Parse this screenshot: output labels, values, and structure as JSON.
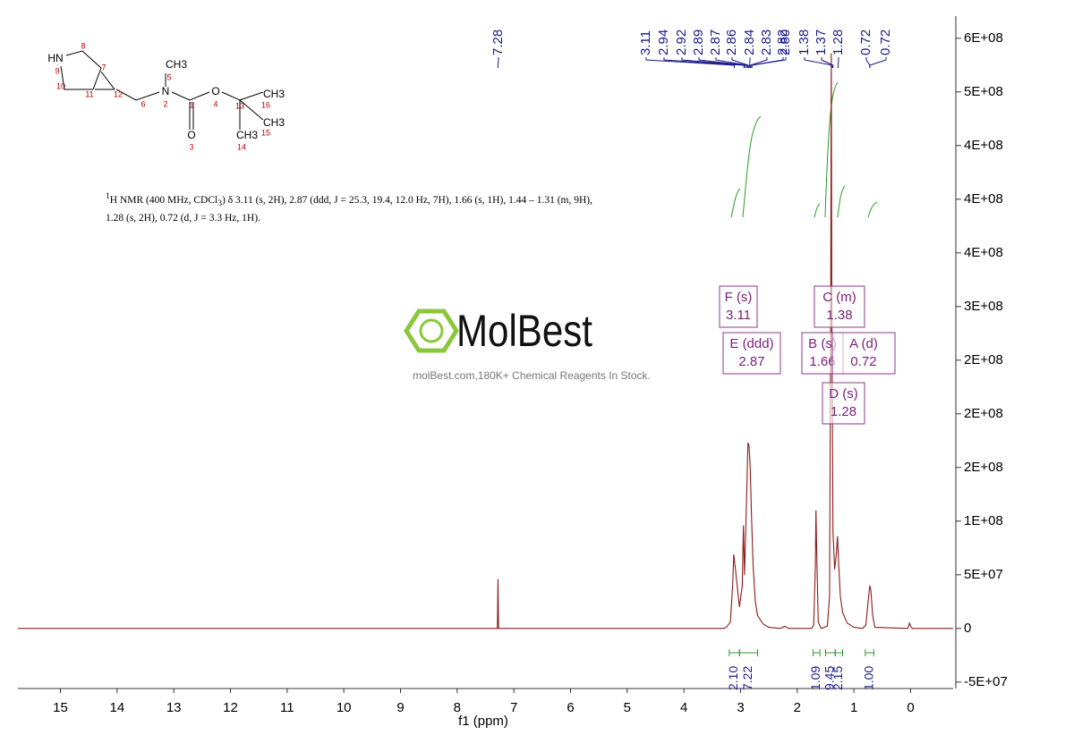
{
  "chart_data": {
    "type": "line",
    "xlabel": "f1 (ppm)",
    "xlim": [
      15.75,
      -0.75
    ],
    "xticks": [
      15,
      14,
      13,
      12,
      11,
      10,
      9,
      8,
      7,
      6,
      5,
      4,
      3,
      2,
      1,
      0
    ],
    "ylim": [
      -56000000,
      569000000
    ],
    "yticks": [
      {
        "value": -50000000,
        "label": "-5E+07"
      },
      0,
      {
        "value": 50000000,
        "label": "5E+07"
      },
      {
        "value": 100000000,
        "label": "1E+08"
      },
      {
        "value": 150000000,
        "label": "2E+08"
      },
      {
        "value": 200000000,
        "label": "2E+08"
      },
      {
        "value": 250000000,
        "label": "2E+08"
      },
      {
        "value": 300000000,
        "label": "3E+08"
      },
      {
        "value": 350000000,
        "label": "4E+08"
      },
      {
        "value": 400000000,
        "label": "4E+08"
      },
      {
        "value": 450000000,
        "label": "4E+08"
      },
      {
        "value": 500000000,
        "label": "5E+08"
      },
      {
        "value": 550000000,
        "label": "6E+08"
      }
    ],
    "series": [
      {
        "color": "#8b1a1a",
        "x": [
          15.75,
          7.31,
          7.29,
          7.28,
          7.27,
          3.3,
          3.25,
          3.18,
          3.14,
          3.12,
          3.08,
          3.02,
          2.97,
          2.95,
          2.93,
          2.91,
          2.89,
          2.87,
          2.85,
          2.83,
          2.81,
          2.78,
          2.74,
          2.7,
          2.6,
          2.5,
          2.3,
          2.22,
          2.15,
          1.75,
          1.71,
          1.68,
          1.67,
          1.66,
          1.63,
          1.58,
          1.47,
          1.43,
          1.41,
          1.4,
          1.39,
          1.37,
          1.34,
          1.31,
          1.29,
          1.27,
          1.24,
          1.2,
          1.12,
          1.0,
          0.85,
          0.79,
          0.75,
          0.72,
          0.7,
          0.67,
          0.63,
          0.05,
          0.02,
          0,
          -0.03,
          -0.75
        ],
        "values": [
          0,
          0,
          0,
          46000000,
          0,
          0,
          1000000,
          6000000,
          40000000,
          69000000,
          50000000,
          20000000,
          40000000,
          96000000,
          50000000,
          90000000,
          130000000,
          173000000,
          170000000,
          150000000,
          110000000,
          60000000,
          25000000,
          12000000,
          4000000,
          1000000,
          0,
          2000000,
          0,
          0,
          3000000,
          60000000,
          110000000,
          80000000,
          6000000,
          0,
          2000000,
          30000000,
          300000000,
          536000000,
          300000000,
          90000000,
          55000000,
          70000000,
          86000000,
          60000000,
          30000000,
          15000000,
          5000000,
          1000000,
          0,
          3000000,
          25000000,
          40000000,
          35000000,
          12000000,
          1000000,
          0,
          5000000,
          2000000,
          0,
          0
        ]
      }
    ],
    "peak_labels": [
      7.28,
      3.11,
      2.94,
      2.92,
      2.89,
      2.87,
      2.86,
      2.84,
      2.83,
      2.82,
      {
        "value": 2.8,
        "label": "2.80"
      },
      1.38,
      1.37,
      1.28,
      0.72,
      0.72
    ],
    "multiplets": [
      {
        "label": "F (s)",
        "shift": 3.11
      },
      {
        "label": "E (ddd)",
        "shift": 2.87
      },
      {
        "label": "C (m)",
        "shift": 1.38
      },
      {
        "label": "B (s)",
        "shift": 1.66
      },
      {
        "label": "A (d)",
        "shift": 0.72
      },
      {
        "label": "D (s)",
        "shift": 1.28
      }
    ],
    "integrals": [
      {
        "value": 2.1,
        "label": "2.10",
        "from": 3.2,
        "to": 3.02
      },
      {
        "value": 7.22,
        "label": "7.22",
        "from": 3.02,
        "to": 2.7
      },
      {
        "value": 1.09,
        "label": "1.09",
        "from": 1.72,
        "to": 1.6
      },
      {
        "value": 9.45,
        "label": "9.45",
        "from": 1.5,
        "to": 1.33
      },
      {
        "value": 2.15,
        "label": "2.15",
        "from": 1.33,
        "to": 1.2
      },
      {
        "value": 1,
        "label": "1.00",
        "from": 0.8,
        "to": 0.65
      }
    ]
  },
  "description": [
    "1",
    "H NMR (400 MHz, CDCl",
    "3",
    ") δ 3.11 (s, 2H), 2.87 (ddd, J = 25.3, 19.4, 12.0 Hz, 7H), 1.66 (s, 1H), 1.44 – 1.31 (m, 9H), 1.28 (s, 2H), 0.72 (d, J = 3.3 Hz, 1H)."
  ],
  "structure": {
    "labels": [
      "HN",
      "8",
      "9",
      "10",
      "7",
      "11",
      "12",
      "6",
      "N",
      "2",
      "5",
      "CH3",
      "1",
      "O",
      "3",
      "O",
      "4",
      "13",
      "CH3",
      "16",
      "CH3",
      "15",
      "CH3",
      "14"
    ]
  },
  "watermark": {
    "brand": "MolBest",
    "tagline": "molBest.com,180K+ Chemical Reagents In Stock."
  }
}
